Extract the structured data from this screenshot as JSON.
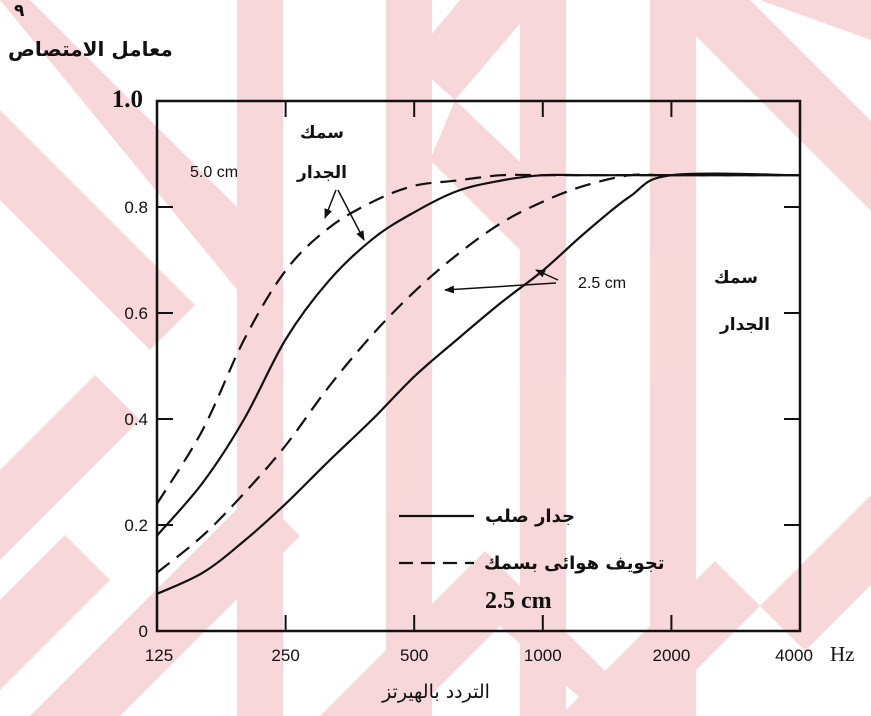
{
  "page": {
    "corner_mark": "٩"
  },
  "chart_data": {
    "type": "line",
    "title": "",
    "ylabel": "معامل الامتصاص",
    "xlabel": "التردد بالهيرتز",
    "x_unit": "Hz",
    "x_scale": "log",
    "x_ticks": [
      125,
      250,
      500,
      1000,
      2000,
      4000
    ],
    "x_tick_labels": [
      "125",
      "250",
      "500",
      "1000",
      "2000",
      "4000"
    ],
    "ylim": [
      0,
      1.0
    ],
    "y_ticks": [
      0,
      0.2,
      0.4,
      0.6,
      0.8,
      1.0
    ],
    "y_tick_labels": [
      "0",
      "0.2",
      "0.4",
      "0.6",
      "0.8",
      "1.0"
    ],
    "series": [
      {
        "style": "solid",
        "thickness": "5.0 cm",
        "x": [
          125,
          160,
          200,
          250,
          315,
          400,
          500,
          630,
          800,
          1000,
          1250,
          1600,
          2000,
          4000
        ],
        "y": [
          0.18,
          0.28,
          0.4,
          0.55,
          0.66,
          0.74,
          0.79,
          0.83,
          0.85,
          0.86,
          0.86,
          0.86,
          0.86,
          0.86
        ]
      },
      {
        "style": "dashed",
        "thickness": "5.0 cm",
        "x": [
          125,
          160,
          200,
          250,
          315,
          400,
          500,
          630,
          800,
          1000,
          1250,
          1600,
          2000,
          4000
        ],
        "y": [
          0.24,
          0.38,
          0.55,
          0.68,
          0.76,
          0.81,
          0.84,
          0.85,
          0.86,
          0.86,
          0.86,
          0.86,
          0.86,
          0.86
        ]
      },
      {
        "style": "solid",
        "thickness": "2.5 cm",
        "x": [
          125,
          160,
          200,
          250,
          315,
          400,
          500,
          630,
          800,
          1000,
          1250,
          1600,
          2000,
          4000
        ],
        "y": [
          0.07,
          0.11,
          0.17,
          0.24,
          0.32,
          0.4,
          0.48,
          0.55,
          0.62,
          0.68,
          0.75,
          0.82,
          0.86,
          0.86
        ]
      },
      {
        "style": "dashed",
        "thickness": "2.5 cm",
        "x": [
          125,
          160,
          200,
          250,
          315,
          400,
          500,
          630,
          800,
          1000,
          1250,
          1600,
          2000,
          4000
        ],
        "y": [
          0.11,
          0.18,
          0.26,
          0.35,
          0.46,
          0.56,
          0.64,
          0.71,
          0.77,
          0.81,
          0.84,
          0.86,
          0.86,
          0.86
        ]
      }
    ],
    "annotations": {
      "thick_label_top": "سمك",
      "thick_label_bottom": "الجدار",
      "thick_5": "5.0 cm",
      "thick_25": "2.5 cm"
    },
    "legend": {
      "position": "lower-right",
      "entries": [
        {
          "style": "solid",
          "label": "جدار صلب"
        },
        {
          "style": "dashed",
          "label": "تجويف هوائى بسمك"
        }
      ],
      "extra": "2.5 cm"
    },
    "grid": false
  }
}
